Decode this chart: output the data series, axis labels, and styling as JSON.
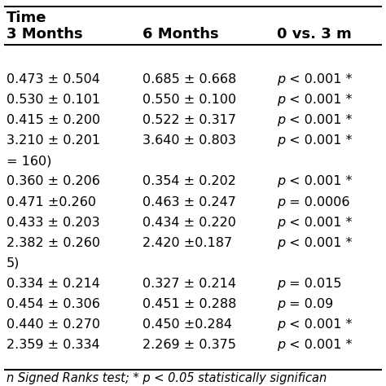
{
  "header_row1": "Time",
  "header_row2": [
    "3 Months",
    "6 Months",
    "0 vs. 3 m"
  ],
  "rows": [
    [
      "",
      "",
      ""
    ],
    [
      "0.473 ± 0.504",
      "0.685 ± 0.668",
      "p < 0.001 *"
    ],
    [
      "0.530 ± 0.101",
      "0.550 ± 0.100",
      "p < 0.001 *"
    ],
    [
      "0.415 ± 0.200",
      "0.522 ± 0.317",
      "p < 0.001 *"
    ],
    [
      "3.210 ± 0.201",
      "3.640 ± 0.803",
      "p < 0.001 *"
    ],
    [
      "= 160)",
      "",
      ""
    ],
    [
      "0.360 ± 0.206",
      "0.354 ± 0.202",
      "p < 0.001 *"
    ],
    [
      "0.471 ±0.260",
      "0.463 ± 0.247",
      "p = 0.0006"
    ],
    [
      "0.433 ± 0.203",
      "0.434 ± 0.220",
      "p < 0.001 *"
    ],
    [
      "2.382 ± 0.260",
      "2.420 ±0.187",
      "p < 0.001 *"
    ],
    [
      "5)",
      "",
      ""
    ],
    [
      "0.334 ± 0.214",
      "0.327 ± 0.214",
      "p = 0.015"
    ],
    [
      "0.454 ± 0.306",
      "0.451 ± 0.288",
      "p = 0.09"
    ],
    [
      "0.440 ± 0.270",
      "0.450 ±0.284",
      "p < 0.001 *"
    ],
    [
      "2.359 ± 0.334",
      "2.269 ± 0.375",
      "p < 0.001 *"
    ]
  ],
  "footer": "n Signed Ranks test; * p < 0.05 statistically significan",
  "background_color": "#ffffff",
  "font_size": 11.5,
  "header_font_size": 13.0,
  "footer_font_size": 10.5
}
